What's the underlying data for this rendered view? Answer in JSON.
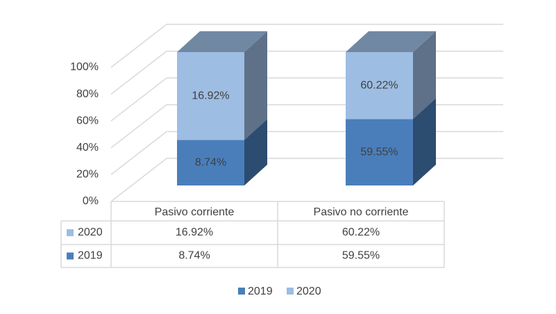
{
  "chart_data": {
    "type": "bar3d_percent_stacked",
    "categories": [
      "Pasivo corriente",
      "Pasivo no corriente"
    ],
    "series": [
      {
        "name": "2019",
        "color": "#4a7ebb",
        "values": [
          8.74,
          59.55
        ],
        "value_labels": [
          "8.74%",
          "59.55%"
        ]
      },
      {
        "name": "2020",
        "color": "#9dbde3",
        "values": [
          16.92,
          60.22
        ],
        "value_labels": [
          "16.92%",
          "60.22%"
        ]
      }
    ],
    "ylim": [
      0,
      100
    ],
    "yticks": [
      {
        "value": 0,
        "label": "0%"
      },
      {
        "value": 20,
        "label": "20%"
      },
      {
        "value": 40,
        "label": "40%"
      },
      {
        "value": 60,
        "label": "60%"
      },
      {
        "value": 80,
        "label": "80%"
      },
      {
        "value": 100,
        "label": "100%"
      }
    ],
    "grid": true,
    "legend": "bottom",
    "data_table": true
  }
}
